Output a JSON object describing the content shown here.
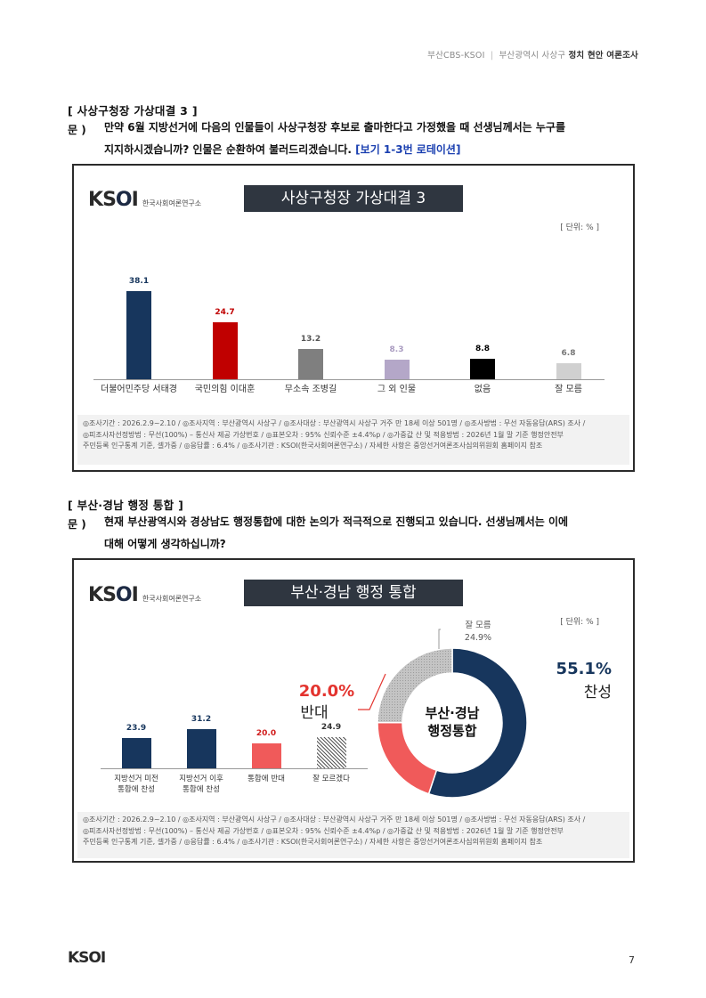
{
  "header": {
    "source": "부산CBS-KSOI",
    "sep": "|",
    "region": "부산광역시 사상구",
    "survey": "정치 현안 여론조사"
  },
  "section1": {
    "title": "[ 사상구청장 가상대결 3 ]",
    "q_mark": "문 )",
    "question_line1": "만약 6월 지방선거에 다음의 인물들이 사상구청장 후보로 출마한다고 가정했을 때 선생님께서는 누구를",
    "question_line2": "지지하시겠습니까? 인물은 순환하여 불러드리겠습니다.",
    "question_note": "[보기 1-3번 로테이션]"
  },
  "section2": {
    "title": "[ 부산·경남 행정 통합 ]",
    "q_mark": "문 )",
    "question_line1": "현재 부산광역시와 경상남도 행정통합에 대한 논의가 적극적으로 진행되고 있습니다. 선생님께서는 이에",
    "question_line2": "대해 어떻게 생각하십니까?"
  },
  "logo": {
    "text_k": "K",
    "text_s": "S",
    "text_o": "O",
    "text_i": "I",
    "sub": "한국사회여론연구소"
  },
  "chart_data": [
    {
      "type": "bar",
      "title": "사상구청장 가상대결 3",
      "unit": "[ 단위: % ]",
      "categories": [
        "더불어민주당 서태경",
        "국민의힘 이대훈",
        "무소속 조병길",
        "그 외 인물",
        "없음",
        "잘 모름"
      ],
      "values": [
        38.1,
        24.7,
        13.2,
        8.3,
        8.8,
        6.8
      ],
      "value_labels": [
        "38.1",
        "24.7",
        "13.2",
        "8.3",
        "8.8",
        "6.8"
      ],
      "colors": [
        "#17365d",
        "#c00000",
        "#7f7f7f",
        "#b4a7c8",
        "#000000",
        "#d0d0d0"
      ],
      "label_colors": [
        "#17365d",
        "#c00000",
        "#555555",
        "#a99bc0",
        "#000000",
        "#777777"
      ]
    },
    {
      "type": "bar",
      "title": "부산·경남 행정 통합",
      "unit": "[ 단위: % ]",
      "categories": [
        "지방선거 미전\n통합에 찬성",
        "지방선거 이후\n통합에 찬성",
        "통합에 반대",
        "잘 모르겠다"
      ],
      "values": [
        23.9,
        31.2,
        20.0,
        24.9
      ],
      "value_labels": [
        "23.9",
        "31.2",
        "20.0",
        "24.9"
      ],
      "colors": [
        "#17365d",
        "#17365d",
        "#f05a5a",
        "hatch"
      ],
      "label_colors": [
        "#17365d",
        "#17365d",
        "#d01c1c",
        "#333333"
      ]
    },
    {
      "type": "pie",
      "title": "부산·경남 행정 통합",
      "center_label_line1": "부산·경남",
      "center_label_line2": "행정통합",
      "slices": [
        {
          "name": "찬성",
          "value": 55.1,
          "label": "55.1%",
          "color": "#17365d"
        },
        {
          "name": "반대",
          "value": 20.0,
          "label": "20.0%",
          "color": "#f05a5a"
        },
        {
          "name": "잘 모름",
          "value": 24.9,
          "label": "24.9%",
          "color": "#bdbdbd"
        }
      ]
    }
  ],
  "footnote": {
    "line1": "◎조사기간 : 2026.2.9~2.10 / ◎조사지역 : 부산광역시 사상구 / ◎조사대상 : 부산광역시 사상구 거주 만 18세 이상 501명 / ◎조사방법 : 무선 자동응답(ARS) 조사 /",
    "line2": "◎피조사자선정방법 : 무선(100%) – 통신사 제공 가상번호 / ◎표본오차 : 95% 신뢰수준 ±4.4%p / ◎가중값 산 및 적용방법 : 2026년 1월 말 기준 행정안전부",
    "line3": "주민등록 인구통계 기준, 셀가중 / ◎응답률 : 6.4% / ◎조사기관 : KSOI(한국사회여론연구소) / 자세한 사항은 중앙선거여론조사심의위원회 홈페이지 참조"
  },
  "footer": {
    "logo": "KSOI",
    "page": "7"
  }
}
